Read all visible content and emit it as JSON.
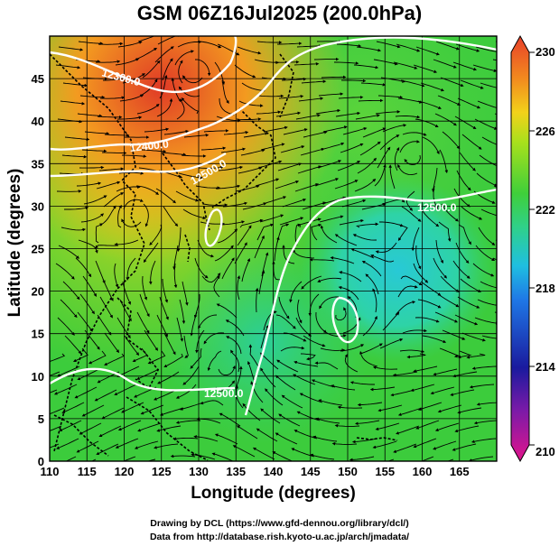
{
  "title": "GSM 06Z16Jul2025 (200.0hPa)",
  "xlabel": "Longitude (degrees)",
  "ylabel": "Latitude  (degrees)",
  "credit_line1": "Drawing by DCL (https://www.gfd-dennou.org/library/dcl/)",
  "credit_line2": "Data from http://database.rish.kyoto-u.ac.jp/arch/jmadata/",
  "chart_data": {
    "type": "heatmap",
    "x_ticks": [
      110,
      115,
      120,
      125,
      130,
      135,
      140,
      145,
      150,
      155,
      160,
      165
    ],
    "y_ticks": [
      0,
      5,
      10,
      15,
      20,
      25,
      30,
      35,
      40,
      45
    ],
    "xlim": [
      110,
      170
    ],
    "ylim": [
      0,
      50
    ],
    "grid": true,
    "colorbar": {
      "min": 210,
      "max": 230,
      "ticks": [
        210,
        214,
        218,
        222,
        226,
        230
      ],
      "colors": [
        "#e2158c",
        "#1a1a9e",
        "#1f9cf0",
        "#2fd18a",
        "#a8e01c",
        "#f2b81a",
        "#e8402a"
      ]
    },
    "contour_labels": [
      "12300.0",
      "12400.0",
      "12500.0",
      "12500.0",
      "12500.0",
      "12500.0"
    ]
  }
}
